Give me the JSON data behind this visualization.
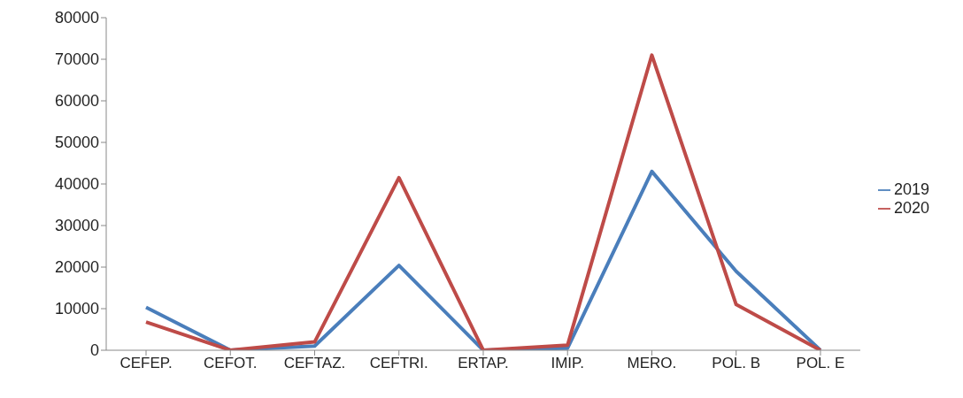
{
  "chart_data": {
    "type": "line",
    "categories": [
      "CEFEP.",
      "CEFOT.",
      "CEFTAZ.",
      "CEFTRI.",
      "ERTAP.",
      "IMIP.",
      "MERO.",
      "POL. B",
      "POL. E"
    ],
    "series": [
      {
        "name": "2019",
        "color": "#4a7ebb",
        "values": [
          10300,
          0,
          1000,
          20400,
          0,
          500,
          43000,
          19000,
          0
        ]
      },
      {
        "name": "2020",
        "color": "#be4b48",
        "values": [
          6800,
          0,
          2000,
          41500,
          0,
          1200,
          71000,
          11000,
          0
        ]
      }
    ],
    "ylim": [
      0,
      80000
    ],
    "yticks": [
      0,
      10000,
      20000,
      30000,
      40000,
      50000,
      60000,
      70000,
      80000
    ],
    "grid": false,
    "legend": "right",
    "marker": "none",
    "line_style": "solid"
  }
}
